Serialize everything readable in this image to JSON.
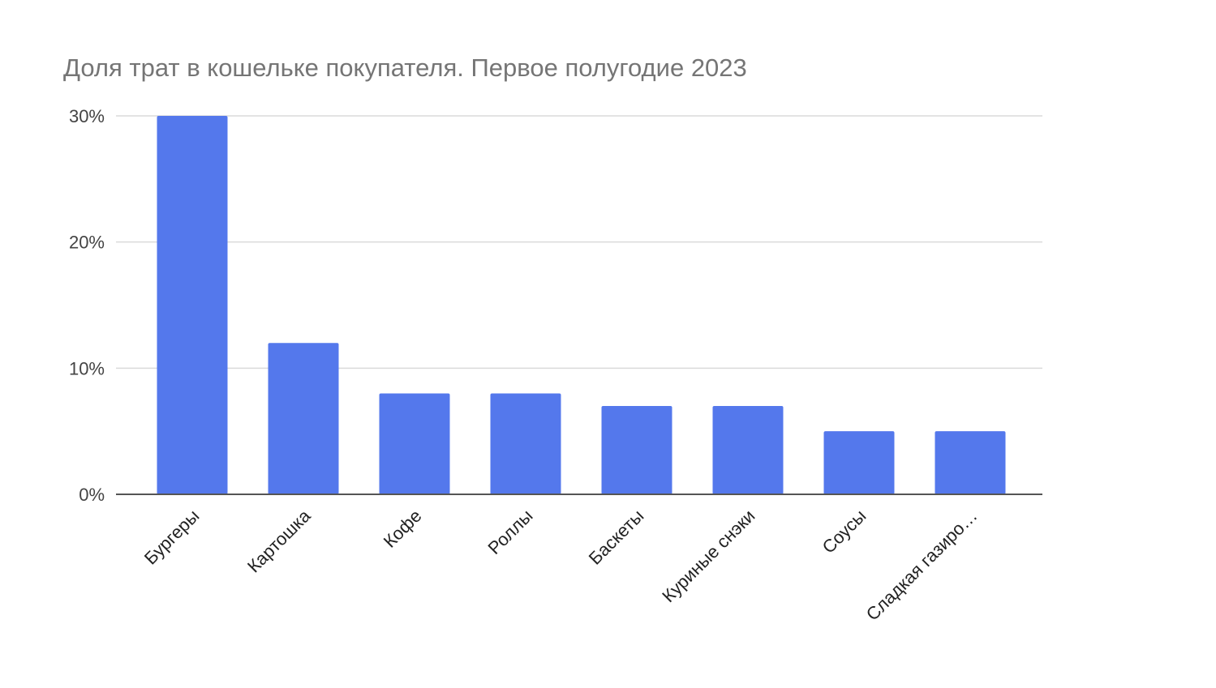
{
  "chart_data": {
    "type": "bar",
    "title": "Доля трат в кошельке покупателя. Первое полугодие 2023",
    "xlabel": "",
    "ylabel": "",
    "categories": [
      "Бургеры",
      "Картошка",
      "Кофе",
      "Роллы",
      "Баскеты",
      "Куриные снэки",
      "Соусы",
      "Сладкая газиро…"
    ],
    "values": [
      30,
      12,
      8,
      8,
      7,
      7,
      5,
      5
    ],
    "value_unit": "%",
    "ylim": [
      0,
      30
    ],
    "yticks": [
      0,
      10,
      20,
      30
    ],
    "ytick_labels": [
      "0%",
      "10%",
      "20%",
      "30%"
    ],
    "grid": true,
    "legend": "none",
    "colors": {
      "bar": "#5478ec",
      "grid": "#dadada",
      "axis": "#555555",
      "title": "#757575"
    }
  }
}
